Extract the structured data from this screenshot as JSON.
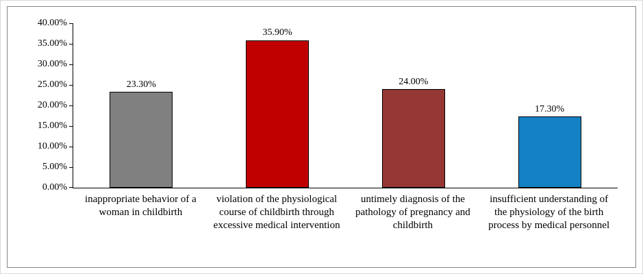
{
  "chart_data": {
    "type": "bar",
    "title": "",
    "xlabel": "",
    "ylabel": "",
    "categories": [
      "inappropriate behavior of a woman in childbirth",
      "violation of the physiological course of childbirth through excessive medical intervention",
      "untimely diagnosis of the pathology of pregnancy and childbirth",
      "insufficient understanding of the physiology of the birth process by medical personnel"
    ],
    "values": [
      23.3,
      35.9,
      24.0,
      17.3
    ],
    "data_labels": [
      "23.30%",
      "35.90%",
      "24.00%",
      "17.30%"
    ],
    "bar_colors": [
      "#808080",
      "#c00000",
      "#953735",
      "#1581c5"
    ],
    "ylim": [
      0,
      40
    ],
    "ytick_step": 5,
    "ytick_labels": [
      "0.00%",
      "5.00%",
      "10.00%",
      "15.00%",
      "20.00%",
      "25.00%",
      "30.00%",
      "35.00%",
      "40.00%"
    ],
    "grid": false,
    "legend": "none"
  }
}
